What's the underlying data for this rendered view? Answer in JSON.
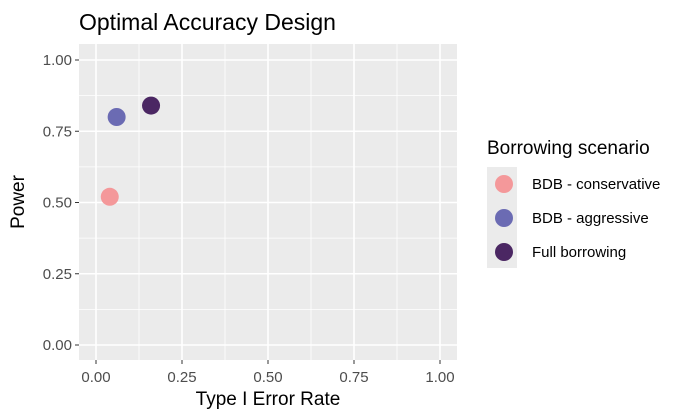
{
  "chart_data": {
    "type": "scatter",
    "title": "Optimal Accuracy Design",
    "xlabel": "Type I Error Rate",
    "ylabel": "Power",
    "xlim": [
      0,
      1
    ],
    "ylim": [
      0,
      1
    ],
    "x_ticks": [
      "0.00",
      "0.25",
      "0.50",
      "0.75",
      "1.00"
    ],
    "y_ticks": [
      "0.00",
      "0.25",
      "0.50",
      "0.75",
      "1.00"
    ],
    "grid": true,
    "legend_title": "Borrowing scenario",
    "legend_position": "right",
    "series": [
      {
        "name": "BDB - conservative",
        "color": "#F4989A",
        "points": [
          {
            "x": 0.04,
            "y": 0.52
          }
        ]
      },
      {
        "name": "BDB - aggressive",
        "color": "#6B6BB3",
        "points": [
          {
            "x": 0.06,
            "y": 0.8
          }
        ]
      },
      {
        "name": "Full borrowing",
        "color": "#4B2763",
        "points": [
          {
            "x": 0.16,
            "y": 0.84
          }
        ]
      }
    ]
  }
}
